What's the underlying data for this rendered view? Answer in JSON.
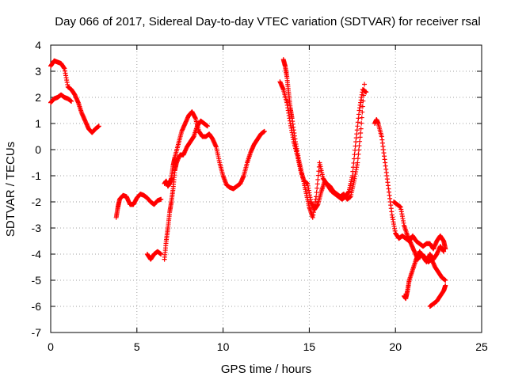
{
  "chart_data": {
    "type": "scatter",
    "title": "Day 066 of 2017, Sidereal Day-to-day VTEC variation (SDTVAR) for receiver rsal",
    "xlabel": "GPS time / hours",
    "ylabel": "SDTVAR / TECUs",
    "xlim": [
      0,
      25
    ],
    "ylim": [
      -7,
      4
    ],
    "xticks": [
      0,
      5,
      10,
      15,
      20,
      25
    ],
    "yticks": [
      -7,
      -6,
      -5,
      -4,
      -3,
      -2,
      -1,
      0,
      1,
      2,
      3,
      4
    ],
    "grid": true,
    "marker": "+",
    "color": "#ff0000",
    "series": [
      {
        "x": [
          0.0,
          0.2,
          0.4,
          0.6,
          0.8,
          1.0,
          1.2,
          1.4,
          1.6,
          1.8,
          2.0,
          2.2,
          2.4,
          2.6,
          2.8
        ],
        "y": [
          3.2,
          3.4,
          3.35,
          3.3,
          3.1,
          2.4,
          2.3,
          2.1,
          1.8,
          1.4,
          1.1,
          0.8,
          0.65,
          0.8,
          0.9
        ]
      },
      {
        "x": [
          0.0,
          0.2,
          0.4,
          0.6,
          0.8,
          1.0,
          1.2
        ],
        "y": [
          1.8,
          1.95,
          2.0,
          2.1,
          2.0,
          1.95,
          1.85
        ]
      },
      {
        "x": [
          3.8,
          3.9,
          4.0,
          4.2,
          4.4,
          4.6,
          4.8,
          5.0,
          5.2,
          5.4,
          5.6,
          5.8,
          6.0,
          6.2,
          6.4
        ],
        "y": [
          -2.6,
          -2.2,
          -1.9,
          -1.75,
          -1.8,
          -2.1,
          -2.1,
          -1.85,
          -1.7,
          -1.75,
          -1.85,
          -2.0,
          -2.1,
          -1.95,
          -1.9
        ]
      },
      {
        "x": [
          5.6,
          5.8,
          6.0,
          6.2,
          6.4
        ],
        "y": [
          -4.0,
          -4.2,
          -4.0,
          -3.9,
          -4.0
        ]
      },
      {
        "x": [
          6.6,
          6.7,
          6.8,
          6.9,
          7.0,
          7.1,
          7.2,
          7.4,
          7.6,
          7.8,
          8.0,
          8.2,
          8.4,
          8.6,
          8.8,
          9.0,
          9.2,
          9.4,
          9.6,
          9.8,
          10.0,
          10.2,
          10.4,
          10.6,
          10.8,
          11.0,
          11.2,
          11.4,
          11.6,
          11.8,
          12.0,
          12.2,
          12.4
        ],
        "y": [
          -1.3,
          -1.2,
          -1.4,
          -1.3,
          -1.1,
          -0.6,
          -0.3,
          0.2,
          0.7,
          1.0,
          1.3,
          1.45,
          1.2,
          0.7,
          0.5,
          0.5,
          0.6,
          0.4,
          0.1,
          -0.5,
          -1.0,
          -1.35,
          -1.45,
          -1.5,
          -1.4,
          -1.3,
          -1.0,
          -0.5,
          -0.1,
          0.2,
          0.4,
          0.6,
          0.7
        ]
      },
      {
        "x": [
          6.6,
          6.7,
          6.8,
          6.9,
          7.0,
          7.1,
          7.2,
          7.3,
          7.5,
          7.7,
          7.9,
          8.1,
          8.3,
          8.5,
          8.7,
          8.9,
          9.1
        ],
        "y": [
          -4.2,
          -3.5,
          -3.0,
          -2.4,
          -2.0,
          -1.5,
          -0.8,
          -0.5,
          -0.2,
          -0.2,
          0.1,
          0.3,
          0.5,
          0.9,
          1.1,
          1.0,
          0.9
        ]
      },
      {
        "x": [
          13.3,
          13.5,
          13.7,
          13.9,
          14.1,
          14.3,
          14.5,
          14.7,
          14.9,
          15.1,
          15.3,
          15.5,
          15.7,
          15.9,
          16.1,
          16.3,
          16.5,
          16.7,
          16.9,
          17.1,
          17.3,
          17.5,
          17.7,
          17.9,
          18.1,
          18.3
        ],
        "y": [
          2.6,
          2.3,
          1.8,
          1.0,
          0.3,
          -0.2,
          -0.8,
          -1.2,
          -1.3,
          -2.0,
          -2.3,
          -2.1,
          -1.6,
          -1.2,
          -1.4,
          -1.6,
          -1.7,
          -1.8,
          -1.9,
          -1.8,
          -1.6,
          -1.0,
          0.3,
          1.5,
          2.3,
          2.2
        ]
      },
      {
        "x": [
          13.5,
          13.6,
          13.7,
          13.8,
          13.9,
          14.0,
          14.2,
          14.4,
          14.6,
          14.8,
          15.0,
          15.2,
          15.4,
          15.6,
          15.8,
          16.0,
          16.2,
          16.4,
          16.6,
          16.8,
          17.0,
          17.2,
          17.4,
          17.6,
          17.8,
          18.0,
          18.2
        ],
        "y": [
          3.45,
          3.2,
          2.8,
          2.2,
          1.6,
          1.2,
          0.3,
          -0.4,
          -1.0,
          -1.6,
          -2.2,
          -2.6,
          -1.8,
          -0.5,
          -1.1,
          -1.3,
          -1.4,
          -1.6,
          -1.7,
          -1.8,
          -1.7,
          -1.9,
          -1.8,
          -1.2,
          -0.5,
          0.8,
          2.5
        ]
      },
      {
        "x": [
          18.8,
          18.9,
          19.0,
          19.2,
          19.4,
          19.6,
          19.8,
          20.0,
          20.2,
          20.4,
          20.6,
          20.8,
          21.0,
          21.2,
          21.4,
          21.6,
          21.8,
          22.0,
          22.2,
          22.4,
          22.6,
          22.8,
          22.9
        ],
        "y": [
          1.0,
          1.15,
          1.0,
          0.5,
          -0.5,
          -1.5,
          -2.5,
          -3.2,
          -3.4,
          -3.3,
          -3.4,
          -3.5,
          -3.3,
          -3.5,
          -3.6,
          -3.7,
          -3.6,
          -3.6,
          -3.8,
          -3.5,
          -3.3,
          -3.5,
          -3.8
        ]
      },
      {
        "x": [
          19.9,
          20.1,
          20.3,
          20.5,
          20.7,
          20.9,
          21.1,
          21.3,
          21.5,
          21.7,
          21.9,
          22.1,
          22.3,
          22.5,
          22.7,
          22.9
        ],
        "y": [
          -2.0,
          -2.1,
          -2.2,
          -2.9,
          -3.3,
          -3.6,
          -3.9,
          -4.2,
          -4.0,
          -4.1,
          -4.3,
          -4.2,
          -4.5,
          -4.7,
          -4.9,
          -5.0
        ]
      },
      {
        "x": [
          20.5,
          20.6,
          20.7,
          20.8,
          21.0,
          21.2,
          21.4,
          21.6,
          21.8,
          22.0,
          22.2,
          22.4,
          22.6,
          22.8
        ],
        "y": [
          -5.6,
          -5.7,
          -5.4,
          -5.0,
          -4.6,
          -4.2,
          -3.9,
          -4.1,
          -4.3,
          -4.0,
          -4.2,
          -4.0,
          -3.7,
          -3.9
        ]
      },
      {
        "x": [
          22.0,
          22.2,
          22.4,
          22.6,
          22.8,
          22.9
        ],
        "y": [
          -6.0,
          -5.9,
          -5.8,
          -5.6,
          -5.4,
          -5.2
        ]
      }
    ]
  }
}
